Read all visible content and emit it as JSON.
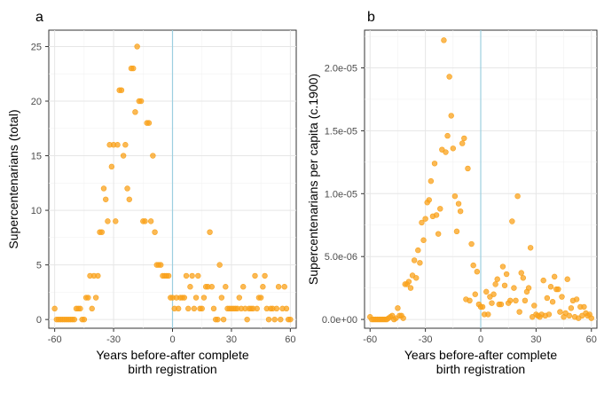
{
  "chart_data": [
    {
      "type": "scatter",
      "panel_label": "a",
      "xlabel": "Years before-after complete\nbirth registration",
      "ylabel": "Supercentenarians (total)",
      "xlim": [
        -63,
        63
      ],
      "ylim": [
        -0.8,
        26.5
      ],
      "xticks": [
        -60,
        -30,
        0,
        30,
        60
      ],
      "xtick_labels": [
        "-60",
        "-30",
        "0",
        "30",
        "60"
      ],
      "yticks": [
        0,
        5,
        10,
        15,
        20,
        25
      ],
      "ytick_labels": [
        "0",
        "5",
        "10",
        "15",
        "20",
        "25"
      ],
      "vline_x": 0,
      "grid": true,
      "point_color": "#F9A21B",
      "vline_color": "#9CCFE0",
      "points": [
        [
          -60,
          1
        ],
        [
          -59,
          0
        ],
        [
          -58,
          0
        ],
        [
          -57,
          0
        ],
        [
          -56,
          0
        ],
        [
          -55,
          0
        ],
        [
          -54,
          0
        ],
        [
          -53,
          0
        ],
        [
          -52,
          0
        ],
        [
          -51,
          0
        ],
        [
          -50,
          0
        ],
        [
          -49,
          1
        ],
        [
          -48,
          1
        ],
        [
          -47,
          1
        ],
        [
          -46,
          0
        ],
        [
          -45,
          0
        ],
        [
          -44,
          2
        ],
        [
          -43,
          2
        ],
        [
          -42,
          4
        ],
        [
          -41,
          1
        ],
        [
          -40,
          4
        ],
        [
          -39,
          2
        ],
        [
          -38,
          4
        ],
        [
          -37,
          8
        ],
        [
          -36,
          8
        ],
        [
          -35,
          12
        ],
        [
          -34,
          11
        ],
        [
          -33,
          9
        ],
        [
          -32,
          16
        ],
        [
          -31,
          14
        ],
        [
          -30,
          16
        ],
        [
          -29,
          9
        ],
        [
          -28,
          16
        ],
        [
          -27,
          21
        ],
        [
          -26,
          21
        ],
        [
          -25,
          15
        ],
        [
          -24,
          16
        ],
        [
          -23,
          12
        ],
        [
          -22,
          11
        ],
        [
          -21,
          23
        ],
        [
          -20,
          23
        ],
        [
          -19,
          19
        ],
        [
          -18,
          25
        ],
        [
          -17,
          20
        ],
        [
          -16,
          20
        ],
        [
          -15,
          9
        ],
        [
          -14,
          9
        ],
        [
          -13,
          18
        ],
        [
          -12,
          18
        ],
        [
          -11,
          9
        ],
        [
          -10,
          15
        ],
        [
          -9,
          8
        ],
        [
          -8,
          5
        ],
        [
          -7,
          5
        ],
        [
          -6,
          5
        ],
        [
          -5,
          4
        ],
        [
          -4,
          4
        ],
        [
          -3,
          4
        ],
        [
          -2,
          4
        ],
        [
          -1,
          2
        ],
        [
          0,
          2
        ],
        [
          1,
          1
        ],
        [
          2,
          2
        ],
        [
          3,
          1
        ],
        [
          4,
          2
        ],
        [
          5,
          2
        ],
        [
          6,
          2
        ],
        [
          7,
          4
        ],
        [
          8,
          1
        ],
        [
          9,
          3
        ],
        [
          10,
          4
        ],
        [
          11,
          1
        ],
        [
          12,
          2
        ],
        [
          13,
          4
        ],
        [
          14,
          1
        ],
        [
          15,
          1
        ],
        [
          16,
          2
        ],
        [
          17,
          3
        ],
        [
          18,
          3
        ],
        [
          19,
          8
        ],
        [
          20,
          3
        ],
        [
          21,
          1
        ],
        [
          22,
          0
        ],
        [
          23,
          0
        ],
        [
          24,
          5
        ],
        [
          25,
          2
        ],
        [
          26,
          0
        ],
        [
          27,
          3
        ],
        [
          28,
          1
        ],
        [
          29,
          1
        ],
        [
          30,
          1
        ],
        [
          31,
          1
        ],
        [
          32,
          1
        ],
        [
          33,
          1
        ],
        [
          34,
          2
        ],
        [
          35,
          1
        ],
        [
          36,
          3
        ],
        [
          37,
          1
        ],
        [
          38,
          0
        ],
        [
          39,
          1
        ],
        [
          40,
          1
        ],
        [
          41,
          1
        ],
        [
          42,
          4
        ],
        [
          43,
          1
        ],
        [
          44,
          2
        ],
        [
          45,
          2
        ],
        [
          46,
          3
        ],
        [
          47,
          4
        ],
        [
          48,
          1
        ],
        [
          49,
          0
        ],
        [
          50,
          1
        ],
        [
          51,
          1
        ],
        [
          52,
          0
        ],
        [
          53,
          1
        ],
        [
          54,
          3
        ],
        [
          55,
          0
        ],
        [
          56,
          1
        ],
        [
          57,
          3
        ],
        [
          58,
          1
        ],
        [
          59,
          0
        ],
        [
          60,
          0
        ]
      ]
    },
    {
      "type": "scatter",
      "panel_label": "b",
      "xlabel": "Years before-after complete\nbirth registration",
      "ylabel": "Supercentenarians per capita (c.1900)",
      "xlim": [
        -63,
        63
      ],
      "ylim": [
        -7e-07,
        2.3e-05
      ],
      "xticks": [
        -60,
        -30,
        0,
        30,
        60
      ],
      "xtick_labels": [
        "-60",
        "-30",
        "0",
        "30",
        "60"
      ],
      "yticks": [
        0,
        5e-06,
        1e-05,
        1.5e-05,
        2e-05
      ],
      "ytick_labels": [
        "0.0e+00",
        "5.0e-06",
        "1.0e-05",
        "1.5e-05",
        "2.0e-05"
      ],
      "vline_x": 0,
      "grid": true,
      "point_color": "#F9A21B",
      "vline_color": "#9CCFE0",
      "points": [
        [
          -60,
          2e-07
        ],
        [
          -59,
          0
        ],
        [
          -58,
          0
        ],
        [
          -57,
          0
        ],
        [
          -56,
          0
        ],
        [
          -55,
          0
        ],
        [
          -54,
          0
        ],
        [
          -53,
          0
        ],
        [
          -52,
          0
        ],
        [
          -51,
          0
        ],
        [
          -50,
          1e-07
        ],
        [
          -49,
          2e-07
        ],
        [
          -48,
          3e-07
        ],
        [
          -47,
          0
        ],
        [
          -46,
          1e-07
        ],
        [
          -45,
          9e-07
        ],
        [
          -44,
          3e-07
        ],
        [
          -43,
          3e-07
        ],
        [
          -42,
          1e-07
        ],
        [
          -41,
          2.8e-06
        ],
        [
          -40,
          2.8e-06
        ],
        [
          -39,
          3e-06
        ],
        [
          -38,
          2.5e-06
        ],
        [
          -37,
          3.5e-06
        ],
        [
          -36,
          4.7e-06
        ],
        [
          -35,
          3.3e-06
        ],
        [
          -34,
          5.5e-06
        ],
        [
          -33,
          4.5e-06
        ],
        [
          -32,
          7.7e-06
        ],
        [
          -31,
          6.3e-06
        ],
        [
          -30,
          8e-06
        ],
        [
          -29,
          9.3e-06
        ],
        [
          -28,
          9.5e-06
        ],
        [
          -27,
          1.1e-05
        ],
        [
          -26,
          8.2e-06
        ],
        [
          -25,
          1.24e-05
        ],
        [
          -24,
          8.3e-06
        ],
        [
          -23,
          6.8e-06
        ],
        [
          -22,
          8.8e-06
        ],
        [
          -21,
          1.35e-05
        ],
        [
          -20,
          2.22e-05
        ],
        [
          -19,
          1.33e-05
        ],
        [
          -18,
          1.46e-05
        ],
        [
          -17,
          1.93e-05
        ],
        [
          -16,
          1.62e-05
        ],
        [
          -15,
          1.36e-05
        ],
        [
          -14,
          9.8e-06
        ],
        [
          -13,
          7e-06
        ],
        [
          -12,
          9.2e-06
        ],
        [
          -11,
          8.6e-06
        ],
        [
          -10,
          1.4e-05
        ],
        [
          -9,
          1.44e-05
        ],
        [
          -8,
          1.6e-06
        ],
        [
          -7,
          1.2e-05
        ],
        [
          -6,
          1.5e-06
        ],
        [
          -5,
          6e-06
        ],
        [
          -4,
          4.3e-06
        ],
        [
          -3,
          2e-06
        ],
        [
          -2,
          3.8e-06
        ],
        [
          -1,
          1.2e-06
        ],
        [
          0,
          1e-06
        ],
        [
          1,
          1e-06
        ],
        [
          2,
          4e-07
        ],
        [
          3,
          2.2e-06
        ],
        [
          4,
          4e-07
        ],
        [
          5,
          1.8e-06
        ],
        [
          6,
          1.3e-06
        ],
        [
          7,
          2e-06
        ],
        [
          8,
          2.8e-06
        ],
        [
          9,
          3.2e-06
        ],
        [
          10,
          1.2e-06
        ],
        [
          11,
          1.2e-06
        ],
        [
          12,
          4.2e-06
        ],
        [
          13,
          2.7e-06
        ],
        [
          14,
          3.6e-06
        ],
        [
          15,
          1.3e-06
        ],
        [
          16,
          1.5e-06
        ],
        [
          17,
          7.8e-06
        ],
        [
          18,
          2.5e-06
        ],
        [
          19,
          1.5e-06
        ],
        [
          20,
          9.8e-06
        ],
        [
          21,
          6e-07
        ],
        [
          22,
          3.7e-06
        ],
        [
          23,
          3.3e-06
        ],
        [
          24,
          1.5e-06
        ],
        [
          25,
          2.2e-06
        ],
        [
          26,
          2.5e-06
        ],
        [
          27,
          5.7e-06
        ],
        [
          28,
          2e-07
        ],
        [
          29,
          1.1e-06
        ],
        [
          30,
          4e-07
        ],
        [
          31,
          3e-07
        ],
        [
          32,
          2e-07
        ],
        [
          33,
          4e-07
        ],
        [
          34,
          3.1e-06
        ],
        [
          35,
          3e-07
        ],
        [
          36,
          1.7e-06
        ],
        [
          37,
          4e-07
        ],
        [
          38,
          2.6e-06
        ],
        [
          39,
          1.4e-06
        ],
        [
          40,
          3.4e-06
        ],
        [
          41,
          2.4e-06
        ],
        [
          42,
          2.4e-06
        ],
        [
          43,
          6e-07
        ],
        [
          44,
          1.8e-06
        ],
        [
          45,
          2e-07
        ],
        [
          46,
          5e-07
        ],
        [
          47,
          3.2e-06
        ],
        [
          48,
          3e-07
        ],
        [
          49,
          9e-07
        ],
        [
          50,
          1.5e-06
        ],
        [
          51,
          2e-07
        ],
        [
          52,
          1.6e-06
        ],
        [
          53,
          1e-07
        ],
        [
          54,
          1e-06
        ],
        [
          55,
          3e-07
        ],
        [
          56,
          1e-06
        ],
        [
          57,
          5e-07
        ],
        [
          58,
          3e-07
        ],
        [
          59,
          4e-07
        ],
        [
          60,
          1e-07
        ]
      ]
    }
  ]
}
